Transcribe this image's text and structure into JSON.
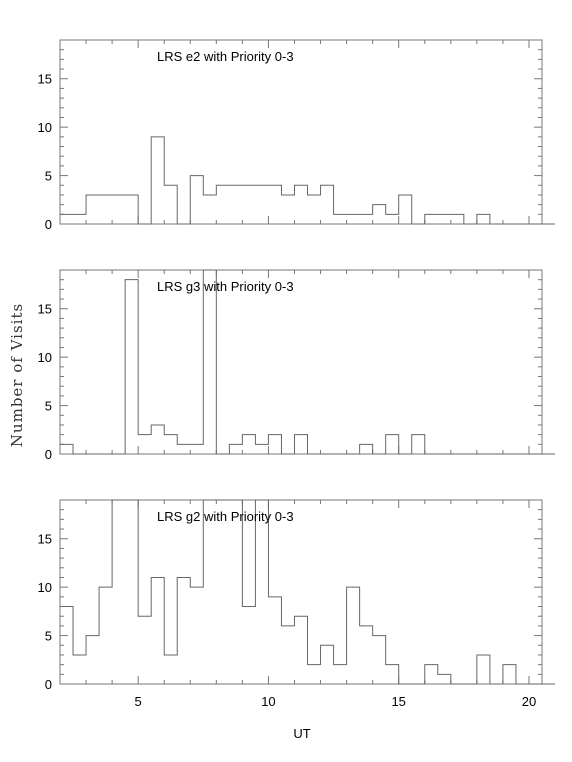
{
  "chart_data": [
    {
      "type": "histogram-step",
      "title": "LRS e2 with Priority 0-3",
      "bin_width": 0.5,
      "x_start": 2,
      "values": [
        1,
        1,
        3,
        3,
        3,
        3,
        0,
        9,
        4,
        0,
        5,
        3,
        4,
        4,
        4,
        4,
        4,
        3,
        4,
        3,
        4,
        1,
        1,
        1,
        2,
        1,
        3,
        0,
        1,
        1,
        1,
        0,
        1,
        0,
        0,
        0,
        0,
        0
      ],
      "xlim": [
        2,
        20.5
      ],
      "ylim": [
        0,
        19
      ],
      "yticks": [
        0,
        5,
        10,
        15
      ],
      "xticks": [
        5,
        10,
        15,
        20
      ],
      "xticks_shown": false
    },
    {
      "type": "histogram-step",
      "title": "LRS g3 with Priority 0-3",
      "bin_width": 0.5,
      "x_start": 2,
      "values": [
        1,
        0,
        0,
        0,
        0,
        18,
        2,
        3,
        2,
        1,
        1,
        19,
        0,
        1,
        2,
        1,
        2,
        0,
        2,
        0,
        0,
        0,
        0,
        1,
        0,
        2,
        0,
        2,
        0,
        0,
        0,
        0,
        0,
        0,
        0,
        0,
        0,
        0
      ],
      "xlim": [
        2,
        20.5
      ],
      "ylim": [
        0,
        19
      ],
      "yticks": [
        0,
        5,
        10,
        15
      ],
      "xticks": [
        5,
        10,
        15,
        20
      ],
      "xticks_shown": false
    },
    {
      "type": "histogram-step",
      "title": "LRS g2 with Priority 0-3",
      "bin_width": 0.5,
      "x_start": 2,
      "values": [
        8,
        3,
        5,
        10,
        19,
        19,
        7,
        11,
        3,
        11,
        10,
        19,
        19,
        19,
        8,
        19,
        9,
        6,
        7,
        2,
        4,
        2,
        10,
        6,
        5,
        2,
        0,
        0,
        2,
        1,
        0,
        0,
        3,
        0,
        2,
        0,
        0,
        0
      ],
      "xlim": [
        2,
        20.5
      ],
      "ylim": [
        0,
        19
      ],
      "yticks": [
        0,
        5,
        10,
        15
      ],
      "xticks": [
        5,
        10,
        15,
        20
      ],
      "xticks_shown": true,
      "xlabel": "UT"
    }
  ],
  "shared": {
    "ylabel": "Number of Visits"
  }
}
